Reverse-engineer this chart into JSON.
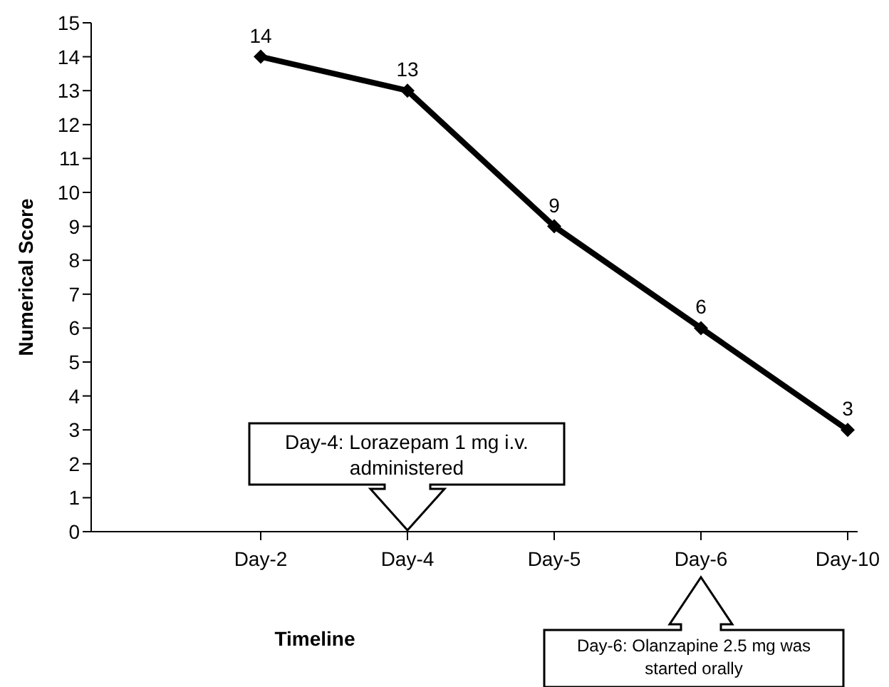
{
  "chart_data": {
    "type": "line",
    "xlabel": "Timeline",
    "ylabel": "Numerical Score",
    "categories": [
      "Day-2",
      "Day-4",
      "Day-5",
      "Day-6",
      "Day-10"
    ],
    "series": [
      {
        "color": "#000000",
        "values": [
          14,
          13,
          9,
          6,
          3
        ]
      }
    ],
    "ylim": [
      0,
      15
    ],
    "yticks": [
      0,
      1,
      2,
      3,
      4,
      5,
      6,
      7,
      8,
      9,
      10,
      11,
      12,
      13,
      14,
      15
    ],
    "grid": false,
    "legend": false,
    "marker": "diamond",
    "line_style": "solid",
    "data_labels": true,
    "annotations": [
      "Day-4: Lorazepam 1 mg i.v. administered",
      "Day-6: Olanzapine 2.5 mg was started orally"
    ]
  }
}
